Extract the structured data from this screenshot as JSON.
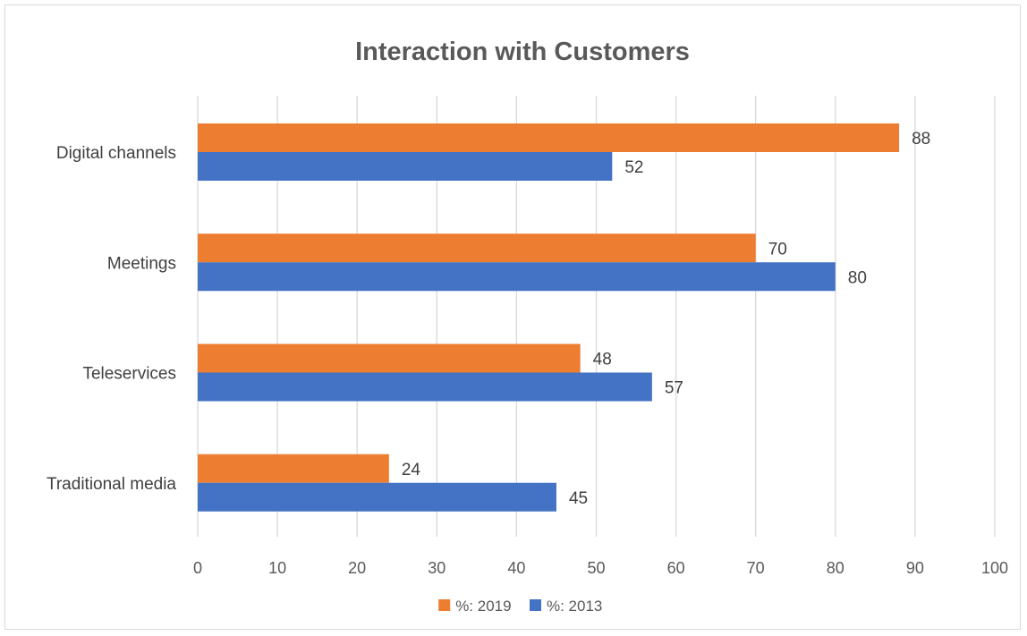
{
  "chart_data": {
    "type": "bar",
    "orientation": "horizontal",
    "title": "Interaction with Customers",
    "categories": [
      "Digital channels",
      "Meetings",
      "Teleservices",
      "Traditional media"
    ],
    "series": [
      {
        "name": "%: 2019",
        "color": "#ed7d31",
        "values": [
          88,
          70,
          48,
          24
        ]
      },
      {
        "name": "%: 2013",
        "color": "#4472c4",
        "values": [
          52,
          80,
          57,
          45
        ]
      }
    ],
    "xlim": [
      0,
      100
    ],
    "xticks": [
      0,
      10,
      20,
      30,
      40,
      50,
      60,
      70,
      80,
      90,
      100
    ],
    "grid": "vertical",
    "legend": "bottom",
    "data_labels": true
  }
}
